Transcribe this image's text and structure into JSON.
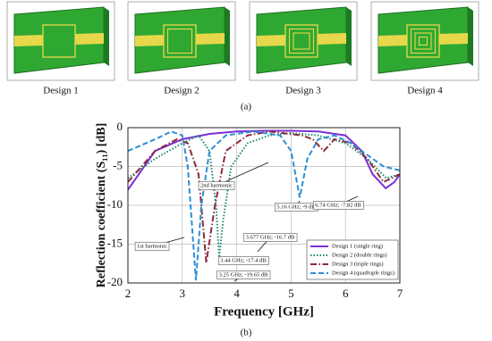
{
  "panel_a": {
    "designs": [
      "Design 1",
      "Design 2",
      "Design 3",
      "Design 4"
    ],
    "label": "(a)"
  },
  "panel_b_label": "(b)",
  "chart_data": {
    "type": "line",
    "xlabel": "Frequency [GHz]",
    "ylabel": "Reflection coefficient (S₁₁) [dB]",
    "xlim": [
      2,
      7
    ],
    "xticks": [
      2,
      3,
      4,
      5,
      6,
      7
    ],
    "ylim": [
      -20,
      0
    ],
    "yticks": [
      0,
      -5,
      -10,
      -15,
      -20
    ],
    "grid": true,
    "legend": "lower right",
    "series": [
      {
        "name": "Design 1 (single ring)",
        "color": "#7b2fd6",
        "line_style": "solid",
        "x": [
          2,
          2.5,
          3,
          3.5,
          4,
          4.5,
          5,
          5.5,
          6,
          6.3,
          6.5,
          6.74,
          6.9,
          7
        ],
        "values": [
          -8,
          -3,
          -1.5,
          -0.8,
          -0.5,
          -0.4,
          -0.4,
          -0.5,
          -1,
          -3,
          -6,
          -7.8,
          -7,
          -6
        ]
      },
      {
        "name": "Design 2 (double rings)",
        "color": "#1a8a6a",
        "line_style": "dotted",
        "x": [
          2,
          2.5,
          3,
          3.3,
          3.5,
          3.62,
          3.677,
          3.75,
          3.9,
          4.2,
          4.6,
          5,
          5.5,
          6,
          6.4,
          6.75,
          7
        ],
        "values": [
          -6.5,
          -4,
          -2,
          -1,
          -3,
          -10,
          -16.7,
          -12,
          -5,
          -2,
          -1,
          -0.7,
          -1,
          -2,
          -4,
          -6.5,
          -6
        ]
      },
      {
        "name": "Design 3 (triple rings)",
        "color": "#8b2b3b",
        "line_style": "dashdot",
        "x": [
          2,
          2.5,
          2.9,
          3.1,
          3.3,
          3.44,
          3.6,
          3.8,
          4.2,
          4.6,
          5.2,
          5.4,
          5.6,
          5.8,
          6.1,
          6.4,
          6.7,
          7
        ],
        "values": [
          -7,
          -3,
          -1.5,
          -2,
          -6,
          -17.4,
          -10,
          -3,
          -1,
          -0.5,
          -1,
          -1.5,
          -3,
          -1.5,
          -2,
          -4,
          -7,
          -6
        ]
      },
      {
        "name": "Design 4 (quadruple rings)",
        "color": "#2b8fd6",
        "line_style": "dashed",
        "x": [
          2,
          2.5,
          2.8,
          3,
          3.1,
          3.25,
          3.35,
          3.5,
          3.8,
          4.3,
          4.8,
          5,
          5.16,
          5.3,
          5.5,
          5.8,
          6.1,
          6.4,
          6.7,
          7
        ],
        "values": [
          -3,
          -1.5,
          -0.5,
          -1,
          -5,
          -19.65,
          -10,
          -3,
          -1,
          -0.5,
          -1,
          -3,
          -9,
          -4,
          -1.5,
          -1,
          -2,
          -3.5,
          -5,
          -5.5
        ]
      }
    ],
    "annotations": [
      "2nd harmonic",
      "1st harmonic",
      "3.677 GHz; -16.7 dB",
      "3.44 GHz; -17.4 dB",
      "3.25 GHz; -19.65 dB",
      "5.16 GHz; -9 dB",
      "6.74 GHz; -7.82 dB"
    ]
  }
}
